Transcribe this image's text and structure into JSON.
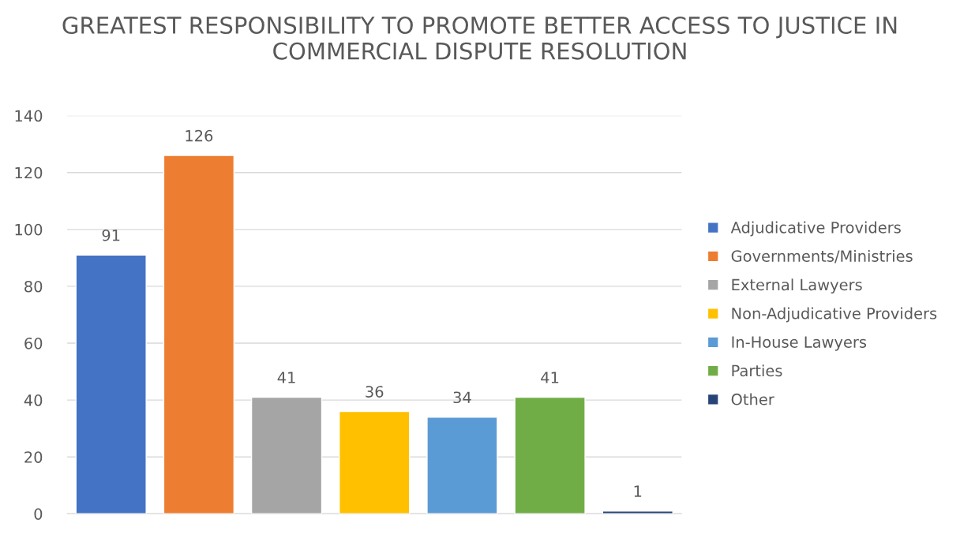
{
  "chart_data": {
    "type": "bar",
    "title": "GREATEST RESPONSIBILITY TO PROMOTE BETTER ACCESS TO JUSTICE IN COMMERCIAL DISPUTE RESOLUTION",
    "categories": [
      null,
      null,
      null,
      null,
      null,
      null,
      null
    ],
    "series": [
      {
        "name": "Adjudicative Providers",
        "color": "#4472c4",
        "values": [
          91,
          null,
          null,
          null,
          null,
          null,
          null
        ]
      },
      {
        "name": "Governments/Ministries",
        "color": "#ed7d31",
        "values": [
          null,
          126,
          null,
          null,
          null,
          null,
          null
        ]
      },
      {
        "name": "External Lawyers",
        "color": "#a5a5a5",
        "values": [
          null,
          null,
          41,
          null,
          null,
          null,
          null
        ]
      },
      {
        "name": "Non-Adjudicative Providers",
        "color": "#ffc000",
        "values": [
          null,
          null,
          null,
          36,
          null,
          null,
          null
        ]
      },
      {
        "name": "In-House Lawyers",
        "color": "#5b9bd5",
        "values": [
          null,
          null,
          null,
          null,
          34,
          null,
          null
        ]
      },
      {
        "name": "Parties",
        "color": "#70ad47",
        "values": [
          null,
          null,
          null,
          null,
          null,
          41,
          null
        ]
      },
      {
        "name": "Other",
        "color": "#264478",
        "values": [
          null,
          null,
          null,
          null,
          null,
          null,
          1
        ]
      }
    ],
    "ylim": [
      0,
      140
    ],
    "yticks": [
      0,
      20,
      40,
      60,
      80,
      100,
      120,
      140
    ],
    "grid": "y",
    "legend": "right",
    "tick_labels": "y",
    "data_labels": true
  }
}
